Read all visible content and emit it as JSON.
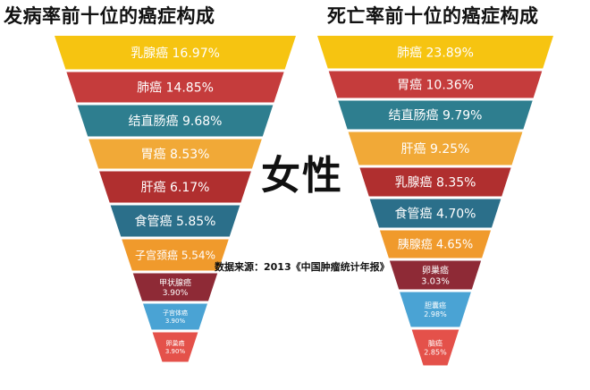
{
  "center_label": "女性",
  "source_note": "数据来源：2013《中国肿瘤统计年报》",
  "chart_data": [
    {
      "type": "funnel",
      "title": "发病率前十位的癌症构成",
      "categories": [
        "乳腺癌",
        "肺癌",
        "结直肠癌",
        "胃癌",
        "肝癌",
        "食管癌",
        "子宫颈癌",
        "甲状腺癌",
        "子宫体癌",
        "卵巢癌"
      ],
      "values": [
        16.97,
        14.85,
        9.68,
        8.53,
        6.17,
        5.85,
        5.54,
        3.9,
        3.9,
        3.9
      ],
      "labels": [
        "乳腺癌 16.97%",
        "肺癌 14.85%",
        "结直肠癌 9.68%",
        "胃癌 8.53%",
        "肝癌 6.17%",
        "食管癌 5.85%",
        "子宫颈癌 5.54%",
        "甲状腺癌 3.90%",
        "子宫体癌 3.90%",
        "卵巢癌 3.90%"
      ],
      "colors": [
        "#f6c411",
        "#c53c3c",
        "#2e7e8f",
        "#f1a937",
        "#b02f2f",
        "#2b6f8a",
        "#f09a2c",
        "#8e2a36",
        "#4aa3d4",
        "#e4514a"
      ]
    },
    {
      "type": "funnel",
      "title": "死亡率前十位的癌症构成",
      "categories": [
        "肺癌",
        "胃癌",
        "结直肠癌",
        "肝癌",
        "乳腺癌",
        "食管癌",
        "胰腺癌",
        "卵巢癌",
        "胆囊癌",
        "脑癌"
      ],
      "values": [
        23.89,
        10.36,
        9.79,
        9.25,
        8.35,
        4.7,
        4.65,
        3.03,
        2.98,
        2.85
      ],
      "labels": [
        "肺癌 23.89%",
        "胃癌 10.36%",
        "结直肠癌 9.79%",
        "肝癌 9.25%",
        "乳腺癌 8.35%",
        "食管癌 4.70%",
        "胰腺癌 4.65%",
        "卵巢癌 3.03%",
        "胆囊癌 2.98%",
        "脑癌 2.85%"
      ],
      "colors": [
        "#f6c411",
        "#c53c3c",
        "#2e7e8f",
        "#f1a937",
        "#b02f2f",
        "#2b6f8a",
        "#f09a2c",
        "#8e2a36",
        "#4aa3d4",
        "#e4514a"
      ]
    }
  ]
}
